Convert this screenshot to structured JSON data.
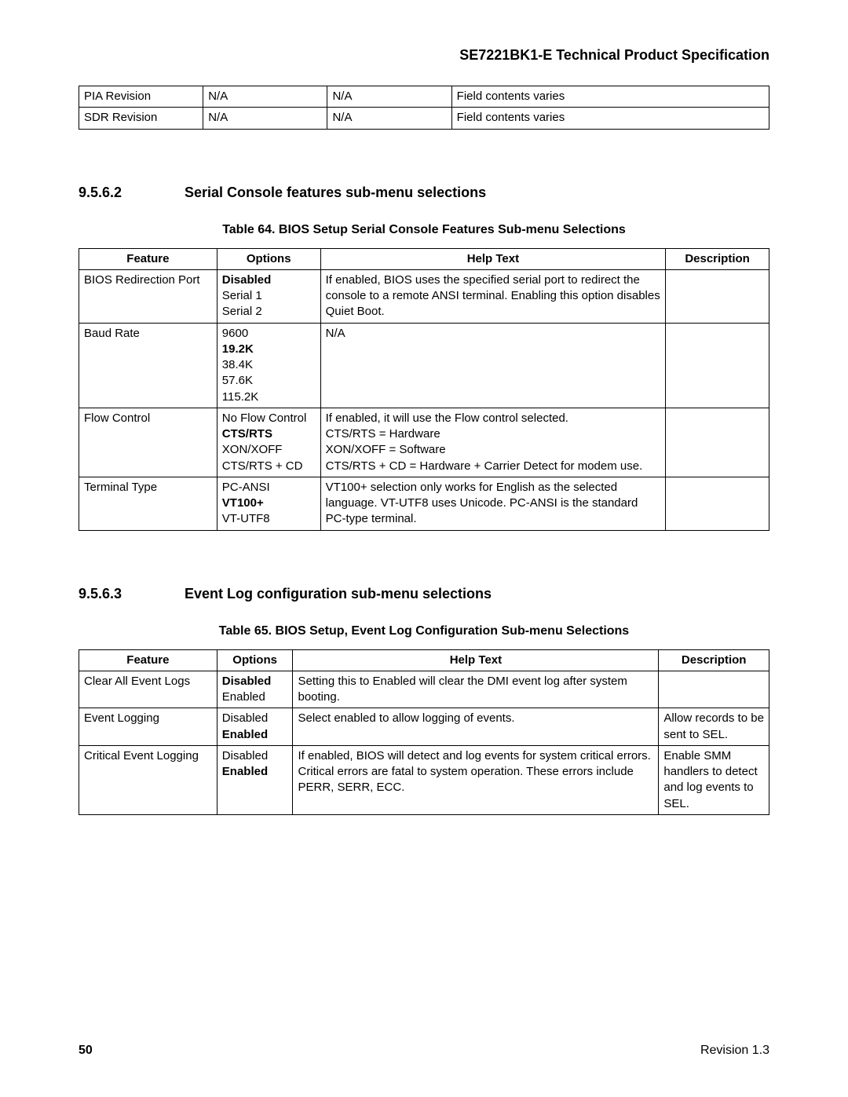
{
  "header": {
    "doc_title": "SE7221BK1-E Technical Product Specification"
  },
  "top_table": {
    "rows": [
      {
        "c1": "PIA Revision",
        "c2": "N/A",
        "c3": "N/A",
        "c4": "Field contents varies"
      },
      {
        "c1": "SDR Revision",
        "c2": "N/A",
        "c3": "N/A",
        "c4": "Field contents varies"
      }
    ]
  },
  "section_9562": {
    "number": "9.5.6.2",
    "title": "Serial Console features sub-menu selections"
  },
  "table64": {
    "caption": "Table 64.  BIOS Setup Serial Console Features Sub-menu Selections",
    "headers": {
      "h1": "Feature",
      "h2": "Options",
      "h3": "Help Text",
      "h4": "Description"
    },
    "rows": [
      {
        "feature": "BIOS Redirection Port",
        "options": [
          {
            "text": "Disabled",
            "bold": true
          },
          {
            "text": "Serial 1",
            "bold": false
          },
          {
            "text": "Serial 2",
            "bold": false
          }
        ],
        "help": "If enabled, BIOS uses the specified serial port to redirect the console to a remote ANSI terminal. Enabling this option disables Quiet Boot.",
        "desc": ""
      },
      {
        "feature": "Baud Rate",
        "options": [
          {
            "text": "9600",
            "bold": false
          },
          {
            "text": "19.2K",
            "bold": true
          },
          {
            "text": "38.4K",
            "bold": false
          },
          {
            "text": "57.6K",
            "bold": false
          },
          {
            "text": "115.2K",
            "bold": false
          }
        ],
        "help": "N/A",
        "desc": ""
      },
      {
        "feature": "Flow Control",
        "options": [
          {
            "text": "No Flow Control",
            "bold": false
          },
          {
            "text": "CTS/RTS",
            "bold": true
          },
          {
            "text": "XON/XOFF",
            "bold": false
          },
          {
            "text": "CTS/RTS + CD",
            "bold": false
          }
        ],
        "help_lines": [
          "If enabled, it will use the Flow control selected.",
          "CTS/RTS = Hardware",
          "XON/XOFF = Software",
          "CTS/RTS + CD = Hardware + Carrier Detect for modem use."
        ],
        "desc": ""
      },
      {
        "feature": "Terminal Type",
        "options": [
          {
            "text": "PC-ANSI",
            "bold": false
          },
          {
            "text": "VT100+",
            "bold": true
          },
          {
            "text": "VT-UTF8",
            "bold": false
          }
        ],
        "help": "VT100+ selection only works for English as the selected language. VT-UTF8 uses Unicode. PC-ANSI is the standard PC-type terminal.",
        "desc": ""
      }
    ]
  },
  "section_9563": {
    "number": "9.5.6.3",
    "title": "Event Log configuration sub-menu selections"
  },
  "table65": {
    "caption": "Table 65.  BIOS Setup, Event Log Configuration Sub-menu Selections",
    "headers": {
      "h1": "Feature",
      "h2": "Options",
      "h3": "Help Text",
      "h4": "Description"
    },
    "rows": [
      {
        "feature": "Clear All Event Logs",
        "options": [
          {
            "text": "Disabled",
            "bold": true
          },
          {
            "text": "Enabled",
            "bold": false
          }
        ],
        "help": "Setting this to Enabled will clear the DMI event log after system booting.",
        "desc": ""
      },
      {
        "feature": "Event Logging",
        "options": [
          {
            "text": "Disabled",
            "bold": false
          },
          {
            "text": "Enabled",
            "bold": true
          }
        ],
        "help": "Select enabled to allow logging of events.",
        "desc": "Allow records to be sent to SEL."
      },
      {
        "feature": "Critical Event Logging",
        "options": [
          {
            "text": "Disabled",
            "bold": false
          },
          {
            "text": "Enabled",
            "bold": true
          }
        ],
        "help": "If enabled, BIOS will detect and log events for system critical errors. Critical errors are fatal to system operation. These errors include PERR, SERR, ECC.",
        "desc": "Enable SMM handlers to detect and log events to SEL."
      }
    ]
  },
  "footer": {
    "page": "50",
    "rev": "Revision 1.3"
  }
}
